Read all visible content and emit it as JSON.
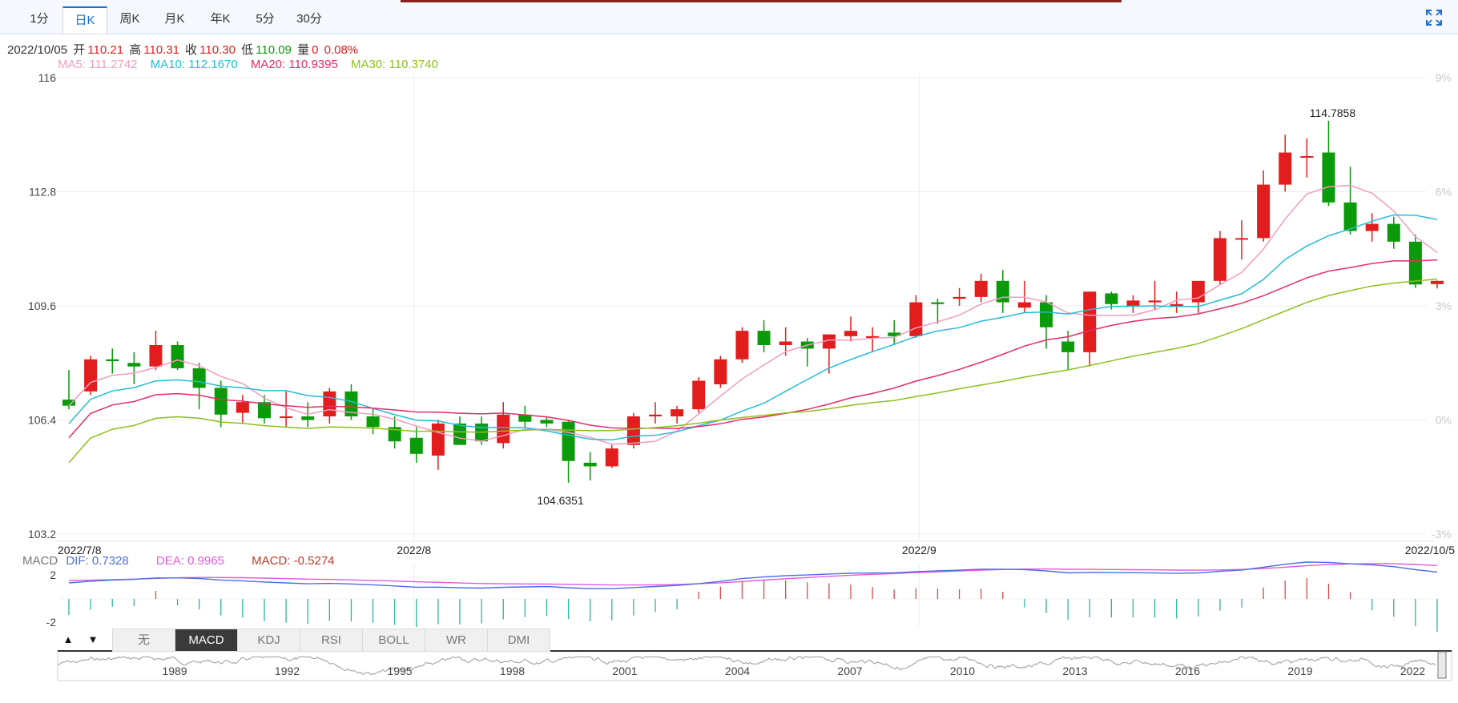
{
  "tabs": [
    {
      "label": "1分",
      "active": false
    },
    {
      "label": "日K",
      "active": true
    },
    {
      "label": "周K",
      "active": false
    },
    {
      "label": "月K",
      "active": false
    },
    {
      "label": "年K",
      "active": false
    },
    {
      "label": "5分",
      "active": false
    },
    {
      "label": "30分",
      "active": false
    }
  ],
  "info": {
    "date": "2022/10/05",
    "open_label": "开",
    "open": "110.21",
    "high_label": "高",
    "high": "110.31",
    "close_label": "收",
    "close": "110.30",
    "low_label": "低",
    "low": "110.09",
    "vol_label": "量",
    "vol": "0",
    "change": "0.08%"
  },
  "ma": {
    "ma5": "MA5: 111.2742",
    "ma10": "MA10: 112.1670",
    "ma20": "MA20: 110.9395",
    "ma30": "MA30: 110.3740"
  },
  "macd_info": {
    "title": "MACD",
    "dif": "DIF: 0.7328",
    "dea": "DEA: 0.9965",
    "macd": "MACD: -0.5274"
  },
  "indicator_tabs": [
    "无",
    "MACD",
    "KDJ",
    "RSI",
    "BOLL",
    "WR",
    "DMI"
  ],
  "active_indicator": "MACD",
  "colors": {
    "up": "#e21d1d",
    "down": "#0a9a0a",
    "ma5": "#f29bbf",
    "ma10": "#23bcd8",
    "ma20": "#e22d6a",
    "ma30": "#8fbf1c",
    "dif": "#4c6fe0",
    "dea": "#e25ae0"
  },
  "chart_data": {
    "type": "candlestick",
    "y_ticks_left": [
      "116",
      "112.8",
      "109.6",
      "106.4",
      "103.2"
    ],
    "y_ticks_right": [
      "9%",
      "6%",
      "3%",
      "0%",
      "-3%"
    ],
    "ylim": [
      103.2,
      116
    ],
    "x_labels": [
      "2022/7/8",
      "2022/8",
      "2022/9",
      "2022/10/5"
    ],
    "max_label": "114.7858",
    "min_label": "104.6351",
    "candles": [
      {
        "date": "2022/7/8",
        "o": 106.97,
        "h": 107.8,
        "l": 106.7,
        "c": 106.8
      },
      {
        "date": "2022/7/11",
        "o": 107.2,
        "h": 108.2,
        "l": 107.1,
        "c": 108.1
      },
      {
        "date": "2022/7/12",
        "o": 108.1,
        "h": 108.4,
        "l": 107.7,
        "c": 108.05
      },
      {
        "date": "2022/7/13",
        "o": 108.0,
        "h": 108.3,
        "l": 107.4,
        "c": 107.9
      },
      {
        "date": "2022/7/14",
        "o": 107.9,
        "h": 108.9,
        "l": 107.8,
        "c": 108.5
      },
      {
        "date": "2022/7/15",
        "o": 108.5,
        "h": 108.6,
        "l": 107.8,
        "c": 107.85
      },
      {
        "date": "2022/7/18",
        "o": 107.85,
        "h": 108.0,
        "l": 106.7,
        "c": 107.3
      },
      {
        "date": "2022/7/19",
        "o": 107.3,
        "h": 107.5,
        "l": 106.2,
        "c": 106.55
      },
      {
        "date": "2022/7/20",
        "o": 106.6,
        "h": 107.1,
        "l": 106.3,
        "c": 106.9
      },
      {
        "date": "2022/7/21",
        "o": 106.9,
        "h": 107.1,
        "l": 106.3,
        "c": 106.45
      },
      {
        "date": "2022/7/22",
        "o": 106.5,
        "h": 107.2,
        "l": 106.2,
        "c": 106.5
      },
      {
        "date": "2022/7/25",
        "o": 106.5,
        "h": 106.9,
        "l": 106.2,
        "c": 106.4
      },
      {
        "date": "2022/7/26",
        "o": 106.5,
        "h": 107.3,
        "l": 106.3,
        "c": 107.2
      },
      {
        "date": "2022/7/27",
        "o": 107.2,
        "h": 107.4,
        "l": 106.4,
        "c": 106.5
      },
      {
        "date": "2022/7/28",
        "o": 106.5,
        "h": 106.7,
        "l": 106.0,
        "c": 106.2
      },
      {
        "date": "2022/7/29",
        "o": 106.2,
        "h": 106.5,
        "l": 105.6,
        "c": 105.8
      },
      {
        "date": "2022/8/1",
        "o": 105.9,
        "h": 106.2,
        "l": 105.2,
        "c": 105.45
      },
      {
        "date": "2022/8/2",
        "o": 105.4,
        "h": 106.4,
        "l": 105.0,
        "c": 106.3
      },
      {
        "date": "2022/8/3",
        "o": 106.3,
        "h": 106.5,
        "l": 105.7,
        "c": 105.7
      },
      {
        "date": "2022/8/4",
        "o": 106.3,
        "h": 106.5,
        "l": 105.7,
        "c": 105.8
      },
      {
        "date": "2022/8/5",
        "o": 105.75,
        "h": 106.9,
        "l": 105.6,
        "c": 106.55
      },
      {
        "date": "2022/8/8",
        "o": 106.55,
        "h": 106.8,
        "l": 106.2,
        "c": 106.35
      },
      {
        "date": "2022/8/9",
        "o": 106.4,
        "h": 106.5,
        "l": 106.2,
        "c": 106.3
      },
      {
        "date": "2022/8/10",
        "o": 106.35,
        "h": 106.4,
        "l": 104.64,
        "c": 105.25
      },
      {
        "date": "2022/8/11",
        "o": 105.2,
        "h": 105.5,
        "l": 104.7,
        "c": 105.1
      },
      {
        "date": "2022/8/12",
        "o": 105.1,
        "h": 105.7,
        "l": 105.05,
        "c": 105.6
      },
      {
        "date": "2022/8/15",
        "o": 105.7,
        "h": 106.6,
        "l": 105.6,
        "c": 106.5
      },
      {
        "date": "2022/8/16",
        "o": 106.5,
        "h": 106.9,
        "l": 106.3,
        "c": 106.55
      },
      {
        "date": "2022/8/17",
        "o": 106.5,
        "h": 106.8,
        "l": 106.3,
        "c": 106.7
      },
      {
        "date": "2022/8/18",
        "o": 106.7,
        "h": 107.6,
        "l": 106.6,
        "c": 107.5
      },
      {
        "date": "2022/8/19",
        "o": 107.4,
        "h": 108.2,
        "l": 107.3,
        "c": 108.1
      },
      {
        "date": "2022/8/22",
        "o": 108.1,
        "h": 109.0,
        "l": 108.0,
        "c": 108.9
      },
      {
        "date": "2022/8/23",
        "o": 108.9,
        "h": 109.2,
        "l": 108.3,
        "c": 108.5
      },
      {
        "date": "2022/8/24",
        "o": 108.5,
        "h": 109.0,
        "l": 108.2,
        "c": 108.6
      },
      {
        "date": "2022/8/25",
        "o": 108.6,
        "h": 108.7,
        "l": 107.9,
        "c": 108.4
      },
      {
        "date": "2022/8/26",
        "o": 108.4,
        "h": 108.7,
        "l": 107.7,
        "c": 108.8
      },
      {
        "date": "2022/8/29",
        "o": 108.75,
        "h": 109.3,
        "l": 108.6,
        "c": 108.9
      },
      {
        "date": "2022/8/30",
        "o": 108.7,
        "h": 109.0,
        "l": 108.3,
        "c": 108.75
      },
      {
        "date": "2022/8/31",
        "o": 108.85,
        "h": 109.2,
        "l": 108.5,
        "c": 108.75
      },
      {
        "date": "2022/9/1",
        "o": 108.75,
        "h": 109.9,
        "l": 108.7,
        "c": 109.7
      },
      {
        "date": "2022/9/2",
        "o": 109.7,
        "h": 109.8,
        "l": 109.1,
        "c": 109.65
      },
      {
        "date": "2022/9/5",
        "o": 109.8,
        "h": 110.1,
        "l": 109.6,
        "c": 109.85
      },
      {
        "date": "2022/9/6",
        "o": 109.85,
        "h": 110.5,
        "l": 109.7,
        "c": 110.3
      },
      {
        "date": "2022/9/7",
        "o": 110.3,
        "h": 110.6,
        "l": 109.4,
        "c": 109.7
      },
      {
        "date": "2022/9/8",
        "o": 109.55,
        "h": 110.3,
        "l": 109.4,
        "c": 109.7
      },
      {
        "date": "2022/9/9",
        "o": 109.7,
        "h": 109.9,
        "l": 108.4,
        "c": 109.0
      },
      {
        "date": "2022/9/12",
        "o": 108.6,
        "h": 108.9,
        "l": 107.8,
        "c": 108.3
      },
      {
        "date": "2022/9/13",
        "o": 108.3,
        "h": 110.0,
        "l": 107.9,
        "c": 110.0
      },
      {
        "date": "2022/9/14",
        "o": 109.95,
        "h": 110.0,
        "l": 109.5,
        "c": 109.65
      },
      {
        "date": "2022/9/15",
        "o": 109.6,
        "h": 109.9,
        "l": 109.4,
        "c": 109.75
      },
      {
        "date": "2022/9/16",
        "o": 109.7,
        "h": 110.3,
        "l": 109.5,
        "c": 109.75
      },
      {
        "date": "2022/9/19",
        "o": 109.6,
        "h": 110.0,
        "l": 109.4,
        "c": 109.65
      },
      {
        "date": "2022/9/20",
        "o": 109.7,
        "h": 110.2,
        "l": 109.4,
        "c": 110.3
      },
      {
        "date": "2022/9/21",
        "o": 110.3,
        "h": 111.7,
        "l": 110.2,
        "c": 111.5
      },
      {
        "date": "2022/9/22",
        "o": 111.5,
        "h": 112.0,
        "l": 110.9,
        "c": 111.5
      },
      {
        "date": "2022/9/23",
        "o": 111.5,
        "h": 113.4,
        "l": 111.4,
        "c": 113.0
      },
      {
        "date": "2022/9/26",
        "o": 113.0,
        "h": 114.4,
        "l": 112.8,
        "c": 113.9
      },
      {
        "date": "2022/9/27",
        "o": 113.8,
        "h": 114.3,
        "l": 113.2,
        "c": 113.8
      },
      {
        "date": "2022/9/28",
        "o": 113.9,
        "h": 114.79,
        "l": 112.4,
        "c": 112.5
      },
      {
        "date": "2022/9/29",
        "o": 112.5,
        "h": 113.5,
        "l": 111.6,
        "c": 111.7
      },
      {
        "date": "2022/9/30",
        "o": 111.7,
        "h": 112.2,
        "l": 111.4,
        "c": 111.9
      },
      {
        "date": "2022/10/3",
        "o": 111.9,
        "h": 112.1,
        "l": 111.2,
        "c": 111.4
      },
      {
        "date": "2022/10/4",
        "o": 111.4,
        "h": 111.6,
        "l": 110.1,
        "c": 110.2
      },
      {
        "date": "2022/10/5",
        "o": 110.21,
        "h": 110.31,
        "l": 110.09,
        "c": 110.3
      }
    ],
    "macd_ylim": [
      -2,
      2
    ],
    "macd_ticks": [
      "2",
      "-2"
    ],
    "navigator_years": [
      "1989",
      "1992",
      "1995",
      "1998",
      "2001",
      "2004",
      "2007",
      "2010",
      "2013",
      "2016",
      "2019",
      "2022"
    ]
  }
}
